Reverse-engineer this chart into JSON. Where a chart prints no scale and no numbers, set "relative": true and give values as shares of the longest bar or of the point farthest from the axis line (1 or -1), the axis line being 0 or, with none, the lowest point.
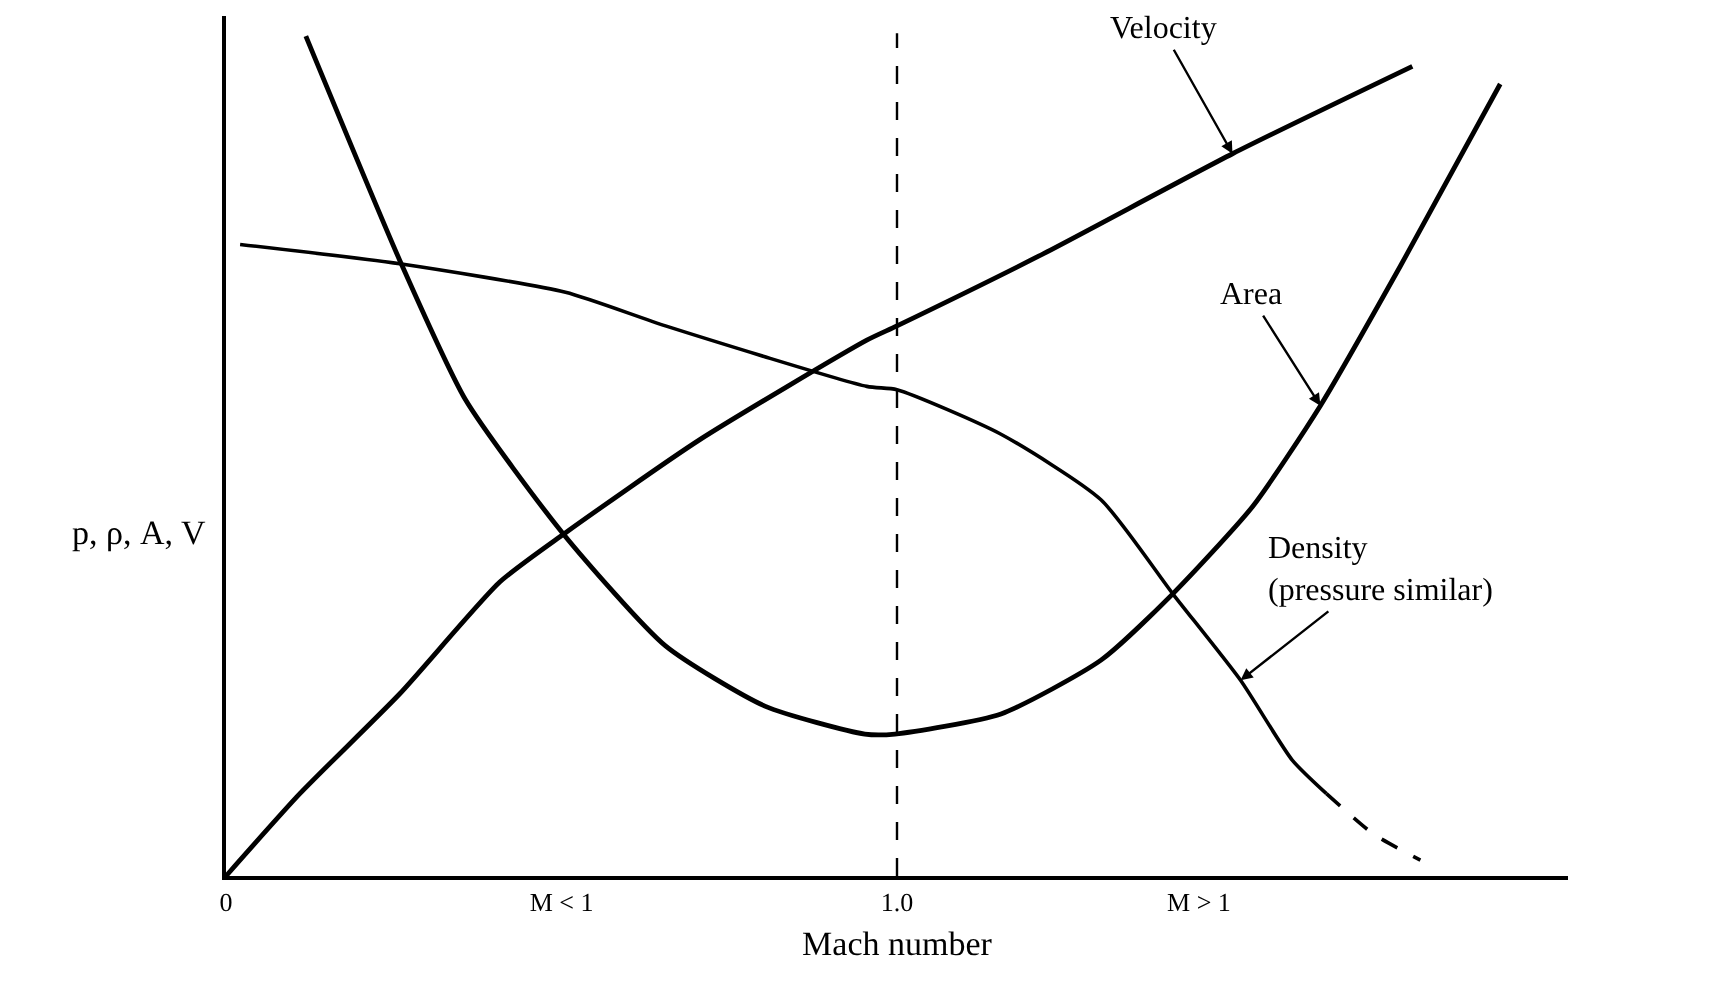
{
  "chart_data": {
    "type": "line",
    "relative": true,
    "xlabel": "Mach number",
    "ylabel": "p, ρ, A, V",
    "xlim": [
      0,
      2.0
    ],
    "xticks": [
      0,
      {
        "value": 0.5,
        "label": "M < 1"
      },
      {
        "value": 1.0,
        "label": "1.0"
      },
      {
        "value": 1.45,
        "label": "M > 1"
      }
    ],
    "marker": "none",
    "series": [
      {
        "color": "#000000",
        "line_style": "solid",
        "x": [
          0,
          0.11,
          0.259,
          0.408,
          0.503,
          0.705,
          0.955,
          1.0,
          1.211,
          1.5,
          1.768
        ],
        "values": [
          0,
          0.098,
          0.217,
          0.35,
          0.407,
          0.519,
          0.638,
          0.655,
          0.738,
          0.86,
          0.964
        ]
      },
      {
        "color": "#000000",
        "line_style": "solid",
        "x": [
          0.119,
          0.259,
          0.357,
          0.503,
          0.655,
          0.804,
          0.952,
          0.997,
          1.155,
          1.304,
          1.411,
          1.53,
          1.631,
          1.75,
          1.899
        ],
        "values": [
          1.0,
          0.733,
          0.567,
          0.407,
          0.274,
          0.202,
          0.169,
          0.169,
          0.193,
          0.257,
          0.336,
          0.44,
          0.56,
          0.726,
          0.943
        ]
      },
      {
        "color": "#000000",
        "line_style": "solid",
        "x": [
          0.021,
          0.259,
          0.506,
          0.655,
          0.955,
          1.0,
          1.155,
          1.304,
          1.411,
          1.512,
          1.589,
          1.64
        ],
        "values": [
          0.752,
          0.729,
          0.695,
          0.655,
          0.583,
          0.579,
          0.526,
          0.448,
          0.336,
          0.233,
          0.138,
          0.098
        ]
      },
      {
        "color": "#000000",
        "line_style": "dashed",
        "x": [
          1.64,
          1.71,
          1.78
        ],
        "values": [
          0.098,
          0.05,
          0.019
        ]
      }
    ],
    "ref_lines": [
      {
        "axis": "x",
        "value": 1.0,
        "color": "#000000",
        "line_style": "dashed"
      }
    ],
    "annotations": [
      {
        "text": "Velocity",
        "x": 1.5,
        "y": 0.86
      },
      {
        "text": "Area",
        "x": 1.631,
        "y": 0.56
      },
      {
        "text": "Density\n(pressure similar)",
        "x": 1.512,
        "y": 0.233
      }
    ]
  }
}
